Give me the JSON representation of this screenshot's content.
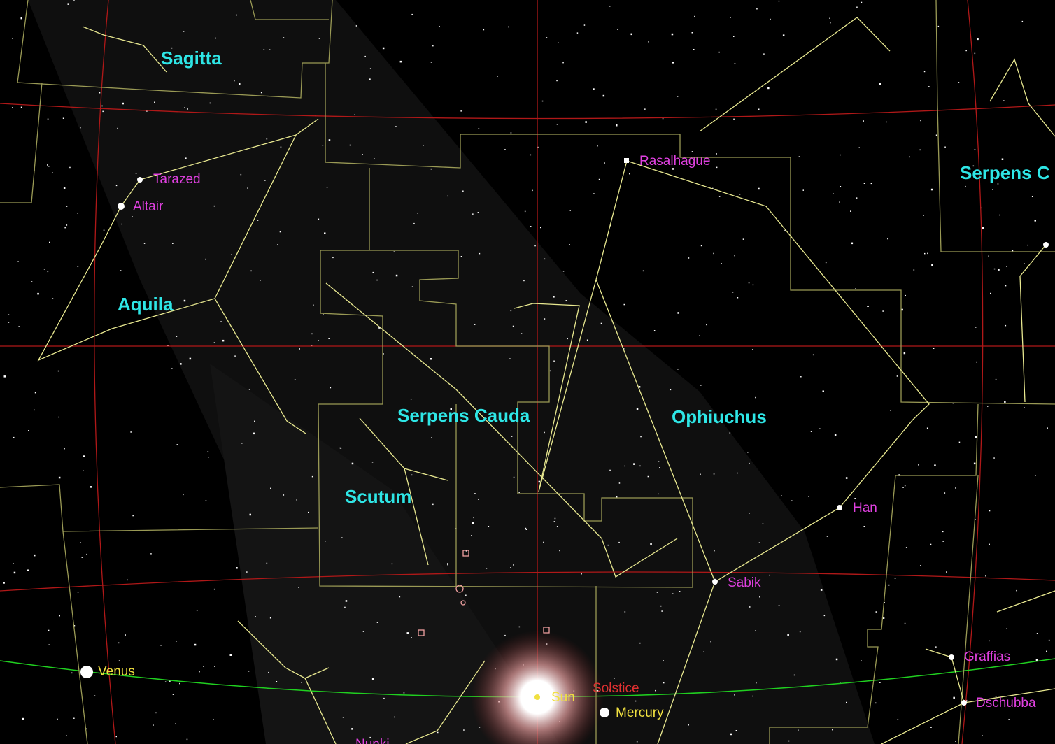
{
  "constellations": [
    "Sagitta",
    "Aquila",
    "Serpens Cauda",
    "Ophiuchus",
    "Scutum",
    "Serpens C"
  ],
  "stars": [
    "Tarazed",
    "Altair",
    "Rasalhague",
    "Han",
    "Sabik",
    "Graffias",
    "Dschubba",
    "Nunki"
  ],
  "planets": [
    "Venus",
    "Sun",
    "Mercury"
  ],
  "markers": [
    "Solstice"
  ]
}
